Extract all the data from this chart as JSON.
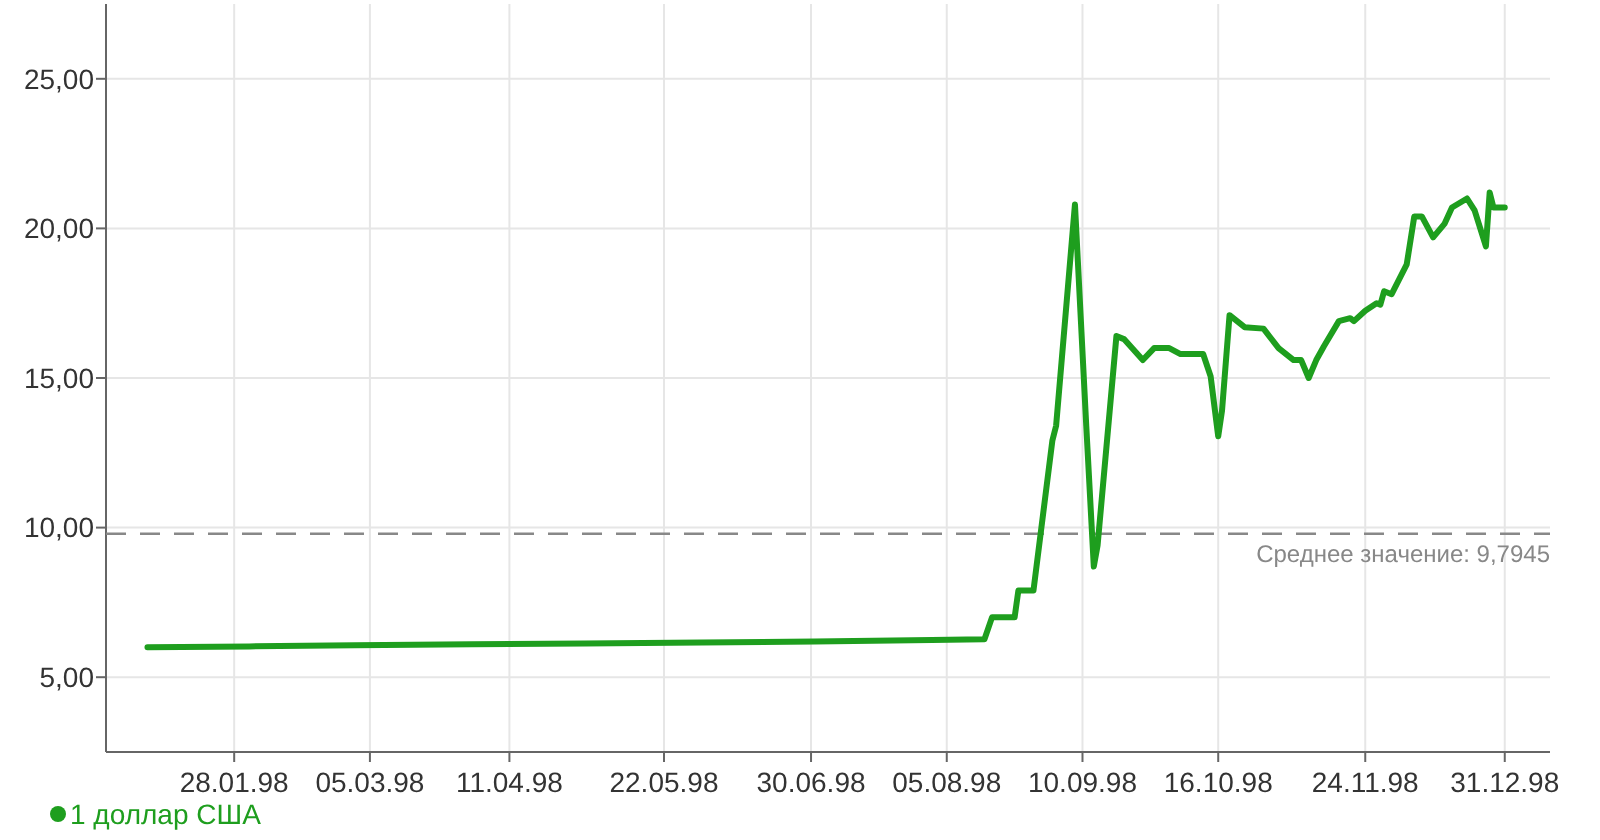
{
  "chart_data": {
    "type": "line",
    "x": [
      "1998-01-05",
      "1998-02-01",
      "1998-03-01",
      "1998-04-01",
      "1998-05-01",
      "1998-06-01",
      "1998-07-01",
      "1998-08-01",
      "1998-08-15",
      "1998-08-17",
      "1998-08-23",
      "1998-08-24",
      "1998-08-28",
      "1998-09-02",
      "1998-09-03",
      "1998-09-08",
      "1998-09-11",
      "1998-09-13",
      "1998-09-14",
      "1998-09-19",
      "1998-09-21",
      "1998-09-26",
      "1998-09-29",
      "1998-10-01",
      "1998-10-03",
      "1998-10-06",
      "1998-10-12",
      "1998-10-14",
      "1998-10-16",
      "1998-10-17",
      "1998-10-19",
      "1998-10-23",
      "1998-10-28",
      "1998-11-01",
      "1998-11-05",
      "1998-11-07",
      "1998-11-09",
      "1998-11-11",
      "1998-11-13",
      "1998-11-17",
      "1998-11-20",
      "1998-11-21",
      "1998-11-24",
      "1998-11-27",
      "1998-11-28",
      "1998-11-29",
      "1998-12-01",
      "1998-12-05",
      "1998-12-07",
      "1998-12-09",
      "1998-12-12",
      "1998-12-15",
      "1998-12-17",
      "1998-12-21",
      "1998-12-23",
      "1998-12-26",
      "1998-12-27",
      "1998-12-28",
      "1998-12-31"
    ],
    "series": [
      {
        "name": "1 доллар США",
        "color": "#1e9e1e",
        "values": [
          6.0,
          6.03,
          6.07,
          6.1,
          6.13,
          6.16,
          6.19,
          6.24,
          6.27,
          7.0,
          7.0,
          7.9,
          7.9,
          12.9,
          13.4,
          20.8,
          13.4,
          8.7,
          9.4,
          16.4,
          16.3,
          15.6,
          16.0,
          16.0,
          16.0,
          15.8,
          15.8,
          15.05,
          13.05,
          13.9,
          17.1,
          16.7,
          16.65,
          16.0,
          15.6,
          15.6,
          15.0,
          15.6,
          16.05,
          16.9,
          17.0,
          16.9,
          17.25,
          17.5,
          17.45,
          17.9,
          17.8,
          18.8,
          20.4,
          20.4,
          19.7,
          20.15,
          20.7,
          21.0,
          20.6,
          19.4,
          21.2,
          20.7,
          20.7
        ]
      }
    ],
    "xlim": [
      "1997-12-25",
      "1999-01-12"
    ],
    "xticks": [
      {
        "value": "1998-01-28",
        "label": "28.01.98"
      },
      {
        "value": "1998-03-05",
        "label": "05.03.98"
      },
      {
        "value": "1998-04-11",
        "label": "11.04.98"
      },
      {
        "value": "1998-05-22",
        "label": "22.05.98"
      },
      {
        "value": "1998-06-30",
        "label": "30.06.98"
      },
      {
        "value": "1998-08-05",
        "label": "05.08.98"
      },
      {
        "value": "1998-09-10",
        "label": "10.09.98"
      },
      {
        "value": "1998-10-16",
        "label": "16.10.98"
      },
      {
        "value": "1998-11-24",
        "label": "24.11.98"
      },
      {
        "value": "1998-12-31",
        "label": "31.12.98"
      }
    ],
    "ylim": [
      2.5,
      27.5
    ],
    "yticks": [
      {
        "value": 5,
        "label": "5,00"
      },
      {
        "value": 10,
        "label": "10,00"
      },
      {
        "value": 15,
        "label": "15,00"
      },
      {
        "value": 20,
        "label": "20,00"
      },
      {
        "value": 25,
        "label": "25,00"
      }
    ],
    "ref_lines": [
      {
        "axis": "y",
        "value": 9.7945,
        "label": "Среднее значение: 9,7945",
        "color": "#888888",
        "line_style": "dashed"
      }
    ],
    "grid": true,
    "legend": "bottom left",
    "line_style": "solid"
  }
}
